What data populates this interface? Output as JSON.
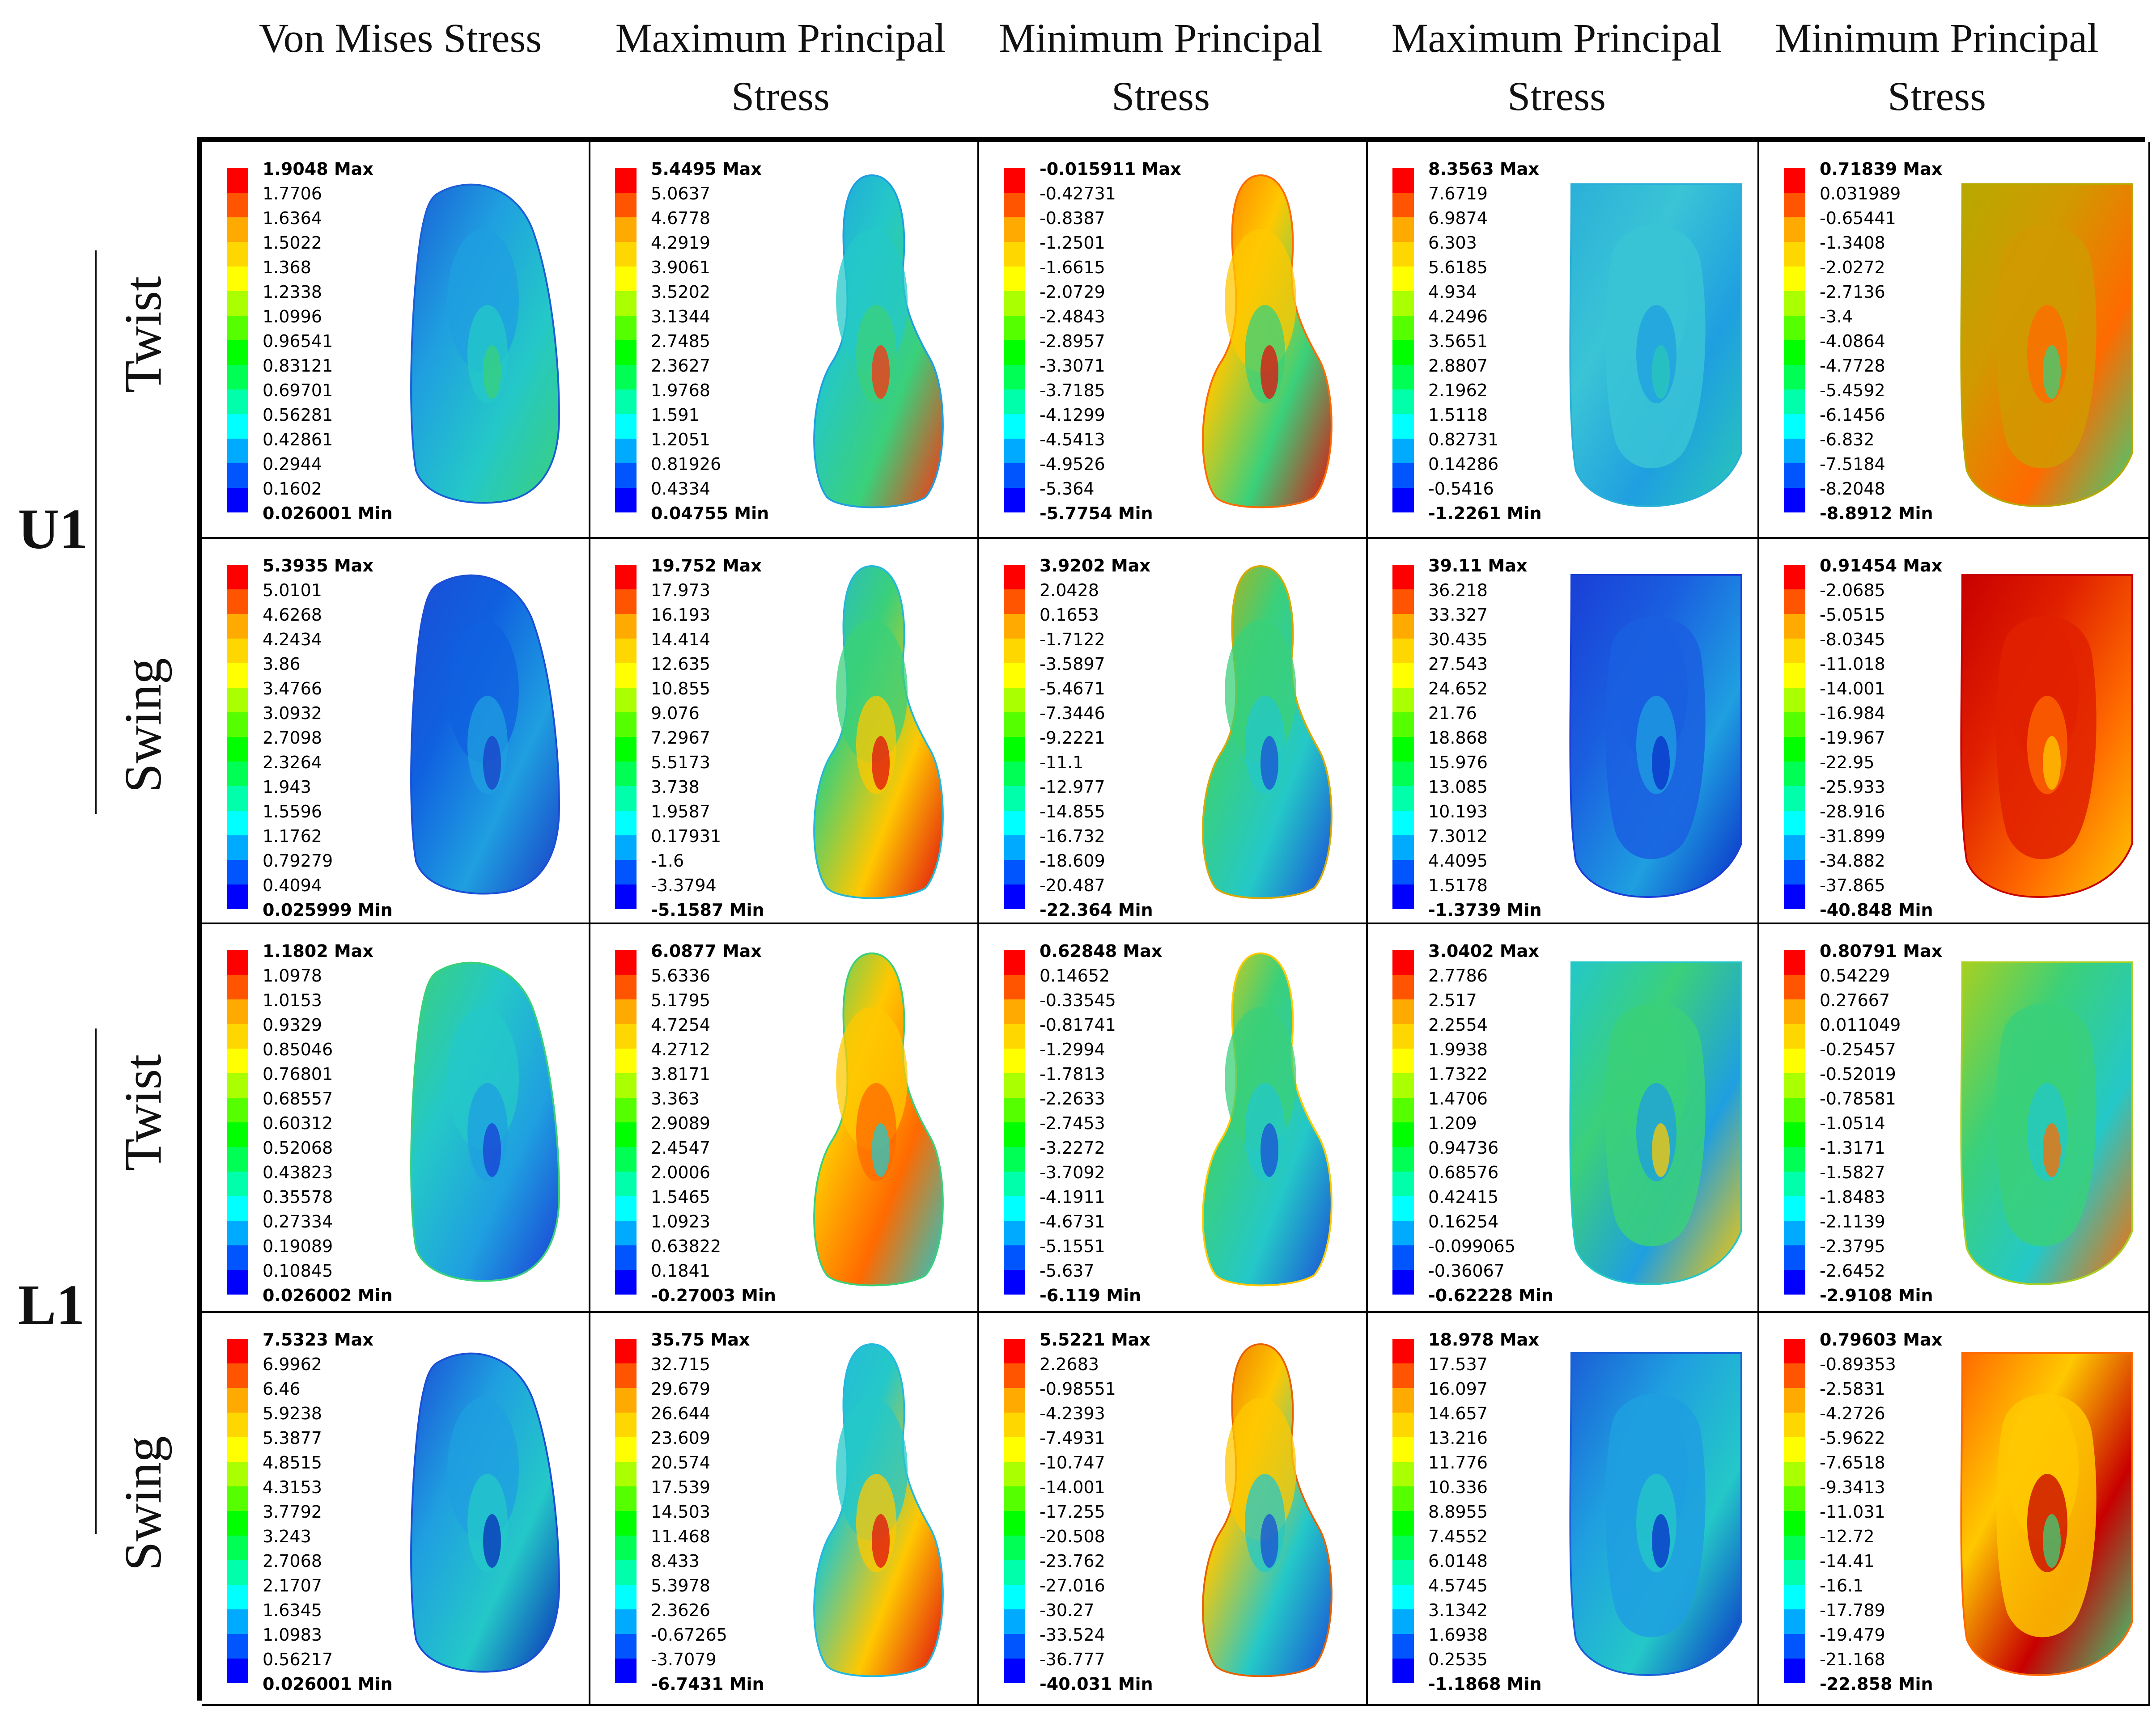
{
  "columns": [
    {
      "l1": "Von Mises Stress",
      "l2": ""
    },
    {
      "l1": "Maximum Principal",
      "l2": "Stress"
    },
    {
      "l1": "Minimum Principal",
      "l2": "Stress"
    },
    {
      "l1": "Maximum Principal",
      "l2": "Stress"
    },
    {
      "l1": "Minimum Principal",
      "l2": "Stress"
    }
  ],
  "groups": [
    {
      "label": "U1",
      "rows": [
        "Twist",
        "Swing"
      ]
    },
    {
      "label": "L1",
      "rows": [
        "Twist",
        "Swing"
      ]
    }
  ],
  "legend_colors": [
    "#FF0000",
    "#FF5500",
    "#FFAA00",
    "#FFD700",
    "#FFFF00",
    "#AAFF00",
    "#55FF00",
    "#00FF00",
    "#00FF55",
    "#00FFAA",
    "#00FFFF",
    "#00AAFF",
    "#0055FF",
    "#0000FF"
  ],
  "cells": [
    [
      {
        "labels": [
          "1.9048 Max",
          "1.7706",
          "1.6364",
          "1.5022",
          "1.368",
          "1.2338",
          "1.0996",
          "0.96541",
          "0.83121",
          "0.69701",
          "0.56281",
          "0.42861",
          "0.2944",
          "0.1602",
          "0.026001 Min"
        ],
        "shape": "crown",
        "palette": [
          "#1a5fd6",
          "#1f9fe0",
          "#24c8c8",
          "#3ad07a"
        ]
      },
      {
        "labels": [
          "5.4495 Max",
          "5.0637",
          "4.6778",
          "4.2919",
          "3.9061",
          "3.5202",
          "3.1344",
          "2.7485",
          "2.3627",
          "1.9768",
          "1.591",
          "1.2051",
          "0.81926",
          "0.4334",
          "0.04755 Min"
        ],
        "shape": "tooth",
        "palette": [
          "#1f9fe0",
          "#24c8c8",
          "#3ad07a",
          "#ff3010"
        ]
      },
      {
        "labels": [
          "-0.015911 Max",
          "-0.42731",
          "-0.8387",
          "-1.2501",
          "-1.6615",
          "-2.0729",
          "-2.4843",
          "-2.8957",
          "-3.3071",
          "-3.7185",
          "-4.1299",
          "-4.5413",
          "-4.9526",
          "-5.364",
          "-5.7754 Min"
        ],
        "shape": "tooth",
        "palette": [
          "#ff6a00",
          "#ffc800",
          "#3ad07a",
          "#e01010"
        ]
      },
      {
        "labels": [
          "8.3563 Max",
          "7.6719",
          "6.9874",
          "6.303",
          "5.6185",
          "4.934",
          "4.2496",
          "3.5651",
          "2.8807",
          "2.1962",
          "1.5118",
          "0.82731",
          "0.14286",
          "-0.5416",
          "-1.2261 Min"
        ],
        "shape": "bone",
        "palette": [
          "#2ab0d8",
          "#3ac4d6",
          "#1f9fe0",
          "#28c8b8"
        ]
      },
      {
        "labels": [
          "0.71839 Max",
          "0.031989",
          "-0.65441",
          "-1.3408",
          "-2.0272",
          "-2.7136",
          "-3.4",
          "-4.0864",
          "-4.7728",
          "-5.4592",
          "-6.1456",
          "-6.832",
          "-7.5184",
          "-8.2048",
          "-8.8912 Min"
        ],
        "shape": "bone",
        "palette": [
          "#b8a800",
          "#d09a00",
          "#ff6a00",
          "#3ad07a"
        ]
      }
    ],
    [
      {
        "labels": [
          "5.3935 Max",
          "5.0101",
          "4.6268",
          "4.2434",
          "3.86",
          "3.4766",
          "3.0932",
          "2.7098",
          "2.3264",
          "1.943",
          "1.5596",
          "1.1762",
          "0.79279",
          "0.4094",
          "0.025999 Min"
        ],
        "shape": "crown",
        "palette": [
          "#1a4fd6",
          "#1060e0",
          "#1f9fe0",
          "#1a3fc8"
        ]
      },
      {
        "labels": [
          "19.752 Max",
          "17.973",
          "16.193",
          "14.414",
          "12.635",
          "10.855",
          "9.076",
          "7.2967",
          "5.5173",
          "3.738",
          "1.9587",
          "0.17931",
          "-1.6",
          "-3.3794",
          "-5.1587 Min"
        ],
        "shape": "tooth",
        "palette": [
          "#24b8d8",
          "#3ad07a",
          "#ffc800",
          "#e01010"
        ]
      },
      {
        "labels": [
          "3.9202 Max",
          "2.0428",
          "0.1653",
          "-1.7122",
          "-3.5897",
          "-5.4671",
          "-7.3446",
          "-9.2221",
          "-11.1",
          "-12.977",
          "-14.855",
          "-16.732",
          "-18.609",
          "-20.487",
          "-22.364 Min"
        ],
        "shape": "tooth",
        "palette": [
          "#d8a800",
          "#3ad07a",
          "#24c8c8",
          "#1a4fd6"
        ]
      },
      {
        "labels": [
          "39.11 Max",
          "36.218",
          "33.327",
          "30.435",
          "27.543",
          "24.652",
          "21.76",
          "18.868",
          "15.976",
          "13.085",
          "10.193",
          "7.3012",
          "4.4095",
          "1.5178",
          "-1.3739 Min"
        ],
        "shape": "bone",
        "palette": [
          "#1a3fd6",
          "#1a5fe0",
          "#1f9fe0",
          "#0a2fc8"
        ]
      },
      {
        "labels": [
          "0.91454 Max",
          "-2.0685",
          "-5.0515",
          "-8.0345",
          "-11.018",
          "-14.001",
          "-16.984",
          "-19.967",
          "-22.95",
          "-25.933",
          "-28.916",
          "-31.899",
          "-34.882",
          "-37.865",
          "-40.848 Min"
        ],
        "shape": "bone",
        "palette": [
          "#c80000",
          "#e02000",
          "#ff6a00",
          "#ffc800"
        ]
      }
    ],
    [
      {
        "labels": [
          "1.1802 Max",
          "1.0978",
          "1.0153",
          "0.9329",
          "0.85046",
          "0.76801",
          "0.68557",
          "0.60312",
          "0.52068",
          "0.43823",
          "0.35578",
          "0.27334",
          "0.19089",
          "0.10845",
          "0.026002 Min"
        ],
        "shape": "crown",
        "palette": [
          "#3ad07a",
          "#24c8c8",
          "#1f9fe0",
          "#1a3fd6"
        ]
      },
      {
        "labels": [
          "6.0877 Max",
          "5.6336",
          "5.1795",
          "4.7254",
          "4.2712",
          "3.8171",
          "3.363",
          "2.9089",
          "2.4547",
          "2.0006",
          "1.5465",
          "1.0923",
          "0.63822",
          "0.1841",
          "-0.27003 Min"
        ],
        "shape": "tooth",
        "palette": [
          "#3ad07a",
          "#ffc800",
          "#ff6a00",
          "#24c8c8"
        ]
      },
      {
        "labels": [
          "0.62848 Max",
          "0.14652",
          "-0.33545",
          "-0.81741",
          "-1.2994",
          "-1.7813",
          "-2.2633",
          "-2.7453",
          "-3.2272",
          "-3.7092",
          "-4.1911",
          "-4.6731",
          "-5.1551",
          "-5.637",
          "-6.119 Min"
        ],
        "shape": "tooth",
        "palette": [
          "#ffc800",
          "#3ad07a",
          "#24c8c8",
          "#1a4fd6"
        ]
      },
      {
        "labels": [
          "3.0402 Max",
          "2.7786",
          "2.517",
          "2.2554",
          "1.9938",
          "1.7322",
          "1.4706",
          "1.209",
          "0.94736",
          "0.68576",
          "0.42415",
          "0.16254",
          "-0.099065",
          "-0.36067",
          "-0.62228 Min"
        ],
        "shape": "bone",
        "palette": [
          "#24c8c8",
          "#3ad07a",
          "#1f9fe0",
          "#ffc800"
        ]
      },
      {
        "labels": [
          "0.80791 Max",
          "0.54229",
          "0.27667",
          "0.011049",
          "-0.25457",
          "-0.52019",
          "-0.78581",
          "-1.0514",
          "-1.3171",
          "-1.5827",
          "-1.8483",
          "-2.1139",
          "-2.3795",
          "-2.6452",
          "-2.9108 Min"
        ],
        "shape": "bone",
        "palette": [
          "#a8d020",
          "#3ad07a",
          "#24c8c8",
          "#ff6a00"
        ]
      }
    ],
    [
      {
        "labels": [
          "7.5323 Max",
          "6.9962",
          "6.46",
          "5.9238",
          "5.3877",
          "4.8515",
          "4.3153",
          "3.7792",
          "3.243",
          "2.7068",
          "2.1707",
          "1.6345",
          "1.0983",
          "0.56217",
          "0.026001 Min"
        ],
        "shape": "crown",
        "palette": [
          "#1a4fd6",
          "#1f9fe0",
          "#24c8c8",
          "#0a2fb8"
        ]
      },
      {
        "labels": [
          "35.75 Max",
          "32.715",
          "29.679",
          "26.644",
          "23.609",
          "20.574",
          "17.539",
          "14.503",
          "11.468",
          "8.433",
          "5.3978",
          "2.3626",
          "-0.67265",
          "-3.7079",
          "-6.7431 Min"
        ],
        "shape": "tooth",
        "palette": [
          "#24b8e0",
          "#24c8c8",
          "#ffc800",
          "#e01010"
        ]
      },
      {
        "labels": [
          "5.5221 Max",
          "2.2683",
          "-0.98551",
          "-4.2393",
          "-7.4931",
          "-10.747",
          "-14.001",
          "-17.255",
          "-20.508",
          "-23.762",
          "-27.016",
          "-30.27",
          "-33.524",
          "-36.777",
          "-40.031 Min"
        ],
        "shape": "tooth",
        "palette": [
          "#e86000",
          "#ffc800",
          "#24c8c8",
          "#1a4fd6"
        ]
      },
      {
        "labels": [
          "18.978 Max",
          "17.537",
          "16.097",
          "14.657",
          "13.216",
          "11.776",
          "10.336",
          "8.8955",
          "7.4552",
          "6.0148",
          "4.5745",
          "3.1342",
          "1.6938",
          "0.2535",
          "-1.1868 Min"
        ],
        "shape": "bone",
        "palette": [
          "#1a5fd6",
          "#1f9fe0",
          "#24c8c8",
          "#0a2fc8"
        ]
      },
      {
        "labels": [
          "0.79603 Max",
          "-0.89353",
          "-2.5831",
          "-4.2726",
          "-5.9622",
          "-7.6518",
          "-9.3413",
          "-11.031",
          "-12.72",
          "-14.41",
          "-16.1",
          "-17.789",
          "-19.479",
          "-21.168",
          "-22.858 Min"
        ],
        "shape": "bone",
        "palette": [
          "#ff6a00",
          "#ffc800",
          "#c80000",
          "#3ad07a"
        ]
      }
    ]
  ]
}
